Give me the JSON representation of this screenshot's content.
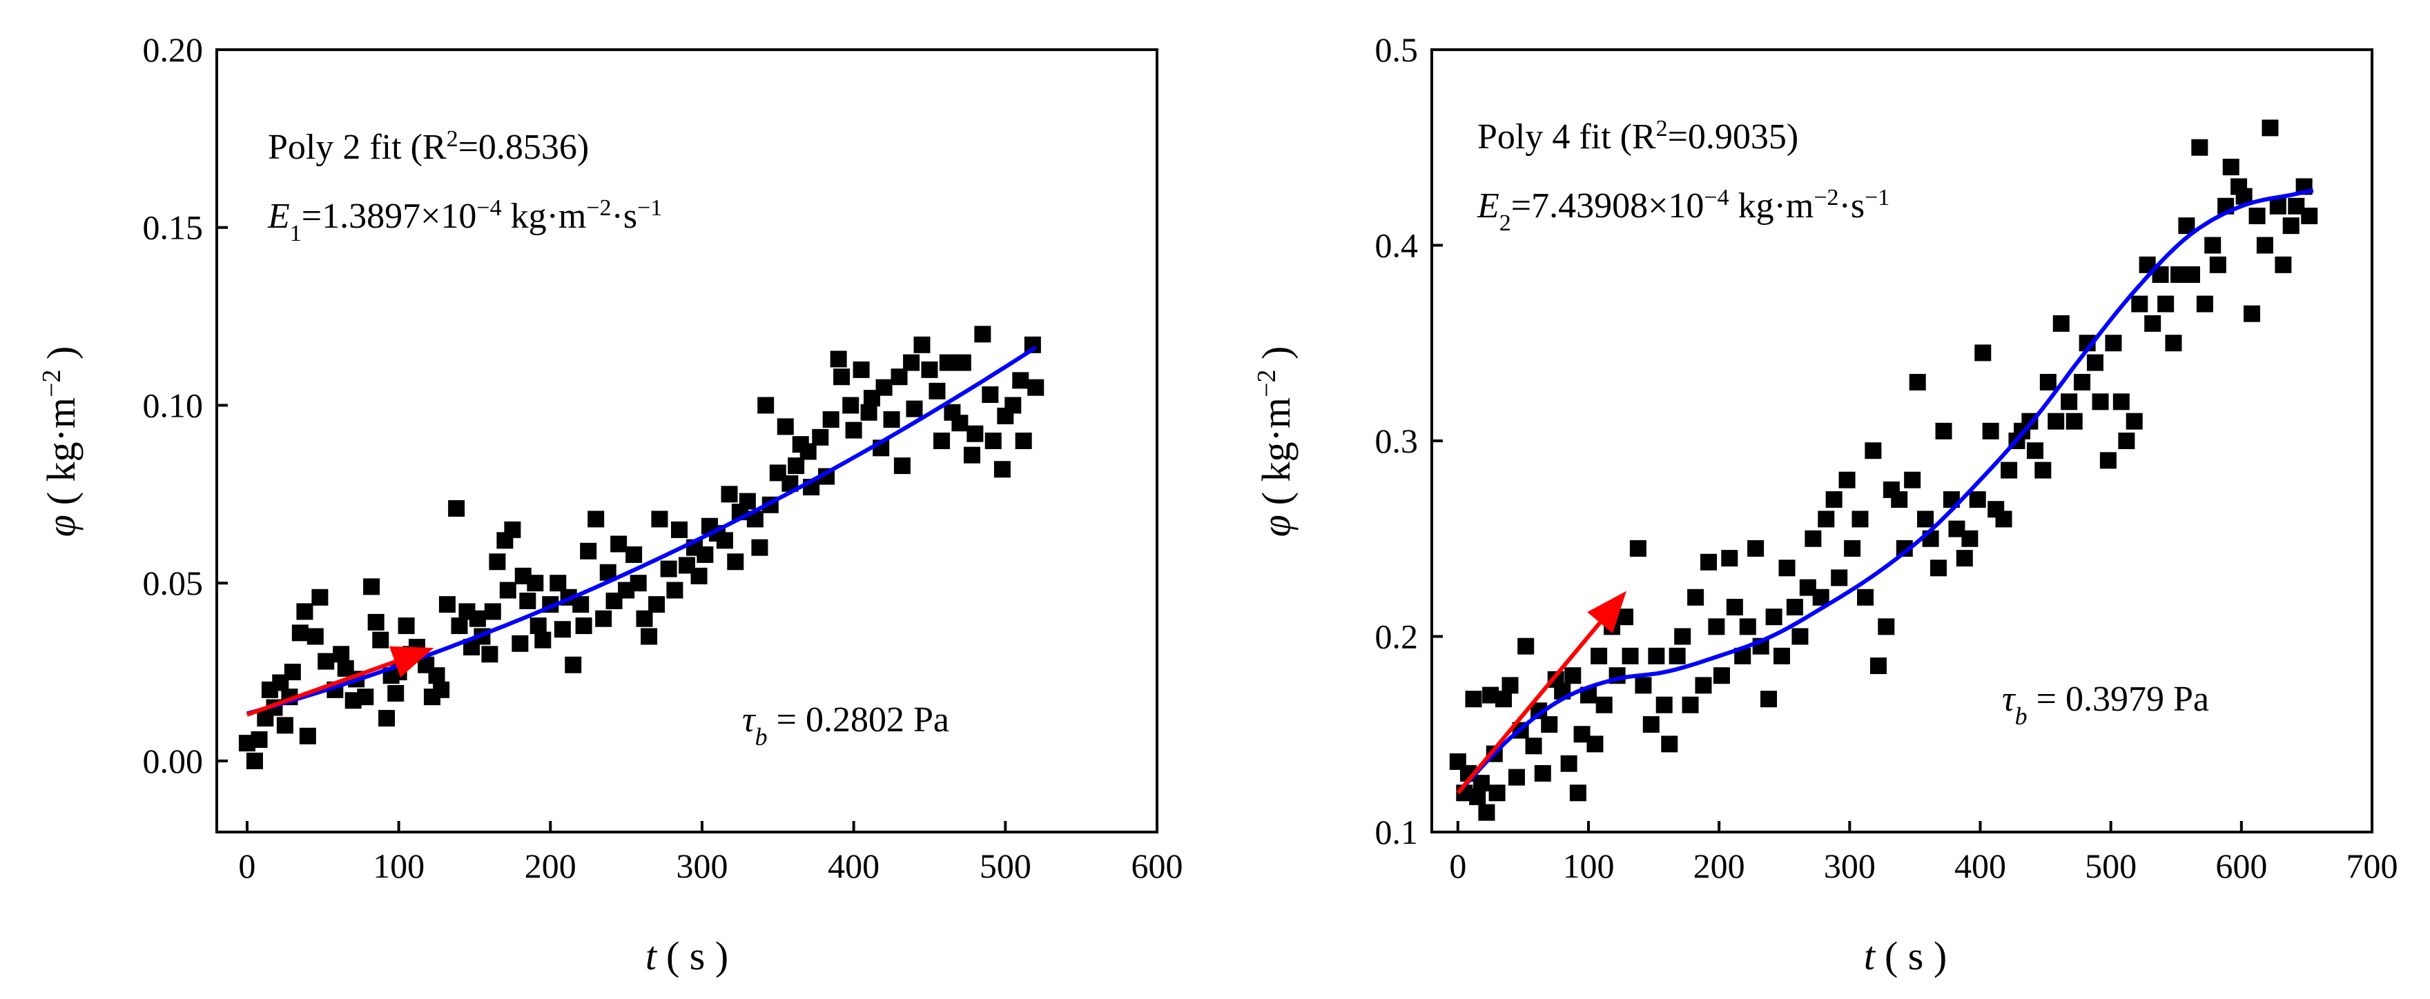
{
  "chart_data": [
    {
      "type": "scatter",
      "xlabel": {
        "symbol": "t",
        "unit": "( s )"
      },
      "ylabel": {
        "symbol": "φ",
        "open": "( kg·m",
        "sup": "−2",
        "close": " )"
      },
      "xlim": [
        -20,
        600
      ],
      "ylim": [
        -0.02,
        0.2
      ],
      "xticks": [
        0,
        100,
        200,
        300,
        400,
        500,
        600
      ],
      "yticks": [
        0.0,
        0.05,
        0.1,
        0.15,
        0.2
      ],
      "ytick_labels": [
        "0.00",
        "0.05",
        "0.10",
        "0.15",
        "0.20"
      ],
      "fit": {
        "type": "poly2",
        "coeffs": [
          0.0133,
          0.00012,
          1.5e-07
        ],
        "x_range": [
          0,
          520
        ],
        "color": "#0000ff"
      },
      "arrow": {
        "from": [
          0,
          0.013
        ],
        "to": [
          118,
          0.031
        ],
        "color": "#ff0000"
      },
      "annotations": {
        "fit_text": {
          "prefix": "Poly 2 fit (R",
          "sup": "2",
          "suffix": "=0.8536)"
        },
        "rate_text": {
          "sym": "E",
          "sub": "1",
          "mid": "=1.3897×10",
          "sup1": "−4",
          "unit": " kg·m",
          "sup2": "−2",
          "unit2": "·s",
          "sup3": "−1"
        },
        "stress_text": {
          "sym": "τ",
          "sub": "b",
          "rest": " = 0.2802 Pa"
        }
      },
      "marker_color": "#000000",
      "x": [
        0,
        5,
        8,
        12,
        15,
        18,
        22,
        25,
        28,
        30,
        35,
        38,
        40,
        45,
        48,
        52,
        58,
        62,
        65,
        70,
        72,
        78,
        82,
        85,
        88,
        92,
        95,
        98,
        100,
        105,
        108,
        112,
        118,
        122,
        125,
        128,
        132,
        138,
        140,
        145,
        148,
        152,
        155,
        160,
        162,
        165,
        170,
        172,
        175,
        180,
        182,
        185,
        190,
        192,
        195,
        200,
        205,
        208,
        212,
        215,
        220,
        222,
        225,
        230,
        235,
        238,
        242,
        245,
        250,
        255,
        258,
        262,
        265,
        270,
        272,
        278,
        282,
        285,
        290,
        295,
        298,
        302,
        305,
        310,
        315,
        318,
        322,
        325,
        330,
        335,
        338,
        342,
        345,
        350,
        355,
        358,
        362,
        365,
        370,
        372,
        378,
        382,
        385,
        390,
        392,
        398,
        400,
        405,
        410,
        412,
        418,
        420,
        425,
        430,
        432,
        438,
        440,
        445,
        450,
        455,
        458,
        462,
        465,
        470,
        472,
        478,
        480,
        485,
        490,
        492,
        498,
        500,
        505,
        510,
        512,
        518,
        520
      ],
      "y": [
        0.005,
        0.0,
        0.006,
        0.012,
        0.02,
        0.015,
        0.022,
        0.01,
        0.018,
        0.025,
        0.036,
        0.042,
        0.007,
        0.035,
        0.046,
        0.028,
        0.02,
        0.03,
        0.026,
        0.017,
        0.023,
        0.018,
        0.049,
        0.039,
        0.034,
        0.012,
        0.024,
        0.019,
        0.025,
        0.038,
        0.03,
        0.032,
        0.027,
        0.018,
        0.024,
        0.02,
        0.044,
        0.071,
        0.038,
        0.042,
        0.032,
        0.04,
        0.035,
        0.03,
        0.042,
        0.056,
        0.062,
        0.048,
        0.065,
        0.033,
        0.052,
        0.045,
        0.05,
        0.038,
        0.034,
        0.044,
        0.05,
        0.037,
        0.046,
        0.027,
        0.044,
        0.038,
        0.059,
        0.068,
        0.04,
        0.053,
        0.045,
        0.061,
        0.048,
        0.058,
        0.05,
        0.04,
        0.035,
        0.044,
        0.068,
        0.054,
        0.048,
        0.065,
        0.055,
        0.06,
        0.052,
        0.058,
        0.066,
        0.064,
        0.062,
        0.075,
        0.056,
        0.07,
        0.073,
        0.068,
        0.06,
        0.1,
        0.072,
        0.081,
        0.094,
        0.078,
        0.083,
        0.089,
        0.087,
        0.077,
        0.091,
        0.08,
        0.096,
        0.113,
        0.108,
        0.1,
        0.093,
        0.11,
        0.098,
        0.102,
        0.088,
        0.105,
        0.096,
        0.108,
        0.083,
        0.112,
        0.099,
        0.117,
        0.11,
        0.104,
        0.09,
        0.112,
        0.098,
        0.095,
        0.112,
        0.086,
        0.092,
        0.12,
        0.103,
        0.09,
        0.082,
        0.097,
        0.1,
        0.107,
        0.09,
        0.117,
        0.105
      ]
    },
    {
      "type": "scatter",
      "xlabel": {
        "symbol": "t",
        "unit": "( s )"
      },
      "ylabel": {
        "symbol": "φ",
        "open": "( kg·m",
        "sup": "−2",
        "close": " )"
      },
      "xlim": [
        -20,
        700
      ],
      "ylim": [
        0.1,
        0.5
      ],
      "xticks": [
        0,
        100,
        200,
        300,
        400,
        500,
        600,
        700
      ],
      "yticks": [
        0.1,
        0.2,
        0.3,
        0.4,
        0.5
      ],
      "ytick_labels": [
        "0.1",
        "0.2",
        "0.3",
        "0.4",
        "0.5"
      ],
      "fit": {
        "type": "curve",
        "color": "#0000ff",
        "x": [
          0,
          40,
          80,
          120,
          160,
          200,
          240,
          280,
          320,
          360,
          400,
          440,
          480,
          520,
          560,
          600,
          640,
          655
        ],
        "y": [
          0.12,
          0.148,
          0.168,
          0.178,
          0.182,
          0.19,
          0.2,
          0.215,
          0.232,
          0.253,
          0.28,
          0.31,
          0.345,
          0.378,
          0.405,
          0.42,
          0.426,
          0.428
        ]
      },
      "arrow": {
        "from": [
          0,
          0.12
        ],
        "to": [
          125,
          0.22
        ],
        "color": "#ff0000"
      },
      "annotations": {
        "fit_text": {
          "prefix": "Poly 4 fit (R",
          "sup": "2",
          "suffix": "=0.9035)"
        },
        "rate_text": {
          "sym": "E",
          "sub": "2",
          "mid": "=7.43908×10",
          "sup1": "−4",
          "unit": " kg·m",
          "sup2": "−2",
          "unit2": "·s",
          "sup3": "−1"
        },
        "stress_text": {
          "sym": "τ",
          "sub": "b",
          "rest": " = 0.3979 Pa"
        }
      },
      "marker_color": "#000000",
      "x": [
        0,
        5,
        8,
        12,
        15,
        18,
        22,
        25,
        28,
        30,
        35,
        40,
        45,
        48,
        52,
        58,
        62,
        65,
        70,
        75,
        80,
        85,
        88,
        92,
        95,
        100,
        105,
        108,
        112,
        118,
        122,
        128,
        132,
        138,
        142,
        148,
        152,
        158,
        162,
        168,
        172,
        178,
        182,
        188,
        192,
        198,
        202,
        208,
        212,
        218,
        222,
        228,
        232,
        238,
        242,
        248,
        252,
        258,
        262,
        268,
        272,
        278,
        282,
        288,
        292,
        298,
        302,
        308,
        312,
        318,
        322,
        328,
        332,
        338,
        342,
        348,
        352,
        358,
        362,
        368,
        372,
        378,
        382,
        388,
        392,
        398,
        402,
        408,
        412,
        418,
        422,
        428,
        432,
        438,
        442,
        448,
        452,
        458,
        462,
        468,
        472,
        478,
        482,
        488,
        492,
        498,
        502,
        508,
        512,
        518,
        522,
        528,
        532,
        538,
        542,
        548,
        552,
        558,
        562,
        568,
        572,
        578,
        582,
        588,
        592,
        598,
        602,
        608,
        612,
        618,
        622,
        628,
        632,
        638,
        642,
        648,
        652
      ],
      "y": [
        0.136,
        0.12,
        0.13,
        0.168,
        0.118,
        0.125,
        0.11,
        0.17,
        0.14,
        0.12,
        0.168,
        0.175,
        0.128,
        0.152,
        0.195,
        0.144,
        0.162,
        0.13,
        0.155,
        0.178,
        0.172,
        0.135,
        0.18,
        0.12,
        0.15,
        0.17,
        0.145,
        0.19,
        0.165,
        0.205,
        0.18,
        0.21,
        0.19,
        0.245,
        0.175,
        0.155,
        0.19,
        0.165,
        0.145,
        0.19,
        0.2,
        0.165,
        0.22,
        0.175,
        0.238,
        0.205,
        0.18,
        0.24,
        0.215,
        0.19,
        0.205,
        0.245,
        0.195,
        0.168,
        0.21,
        0.19,
        0.235,
        0.215,
        0.2,
        0.225,
        0.25,
        0.22,
        0.26,
        0.27,
        0.23,
        0.28,
        0.245,
        0.26,
        0.22,
        0.295,
        0.185,
        0.205,
        0.275,
        0.27,
        0.245,
        0.28,
        0.33,
        0.26,
        0.25,
        0.235,
        0.305,
        0.27,
        0.255,
        0.24,
        0.25,
        0.27,
        0.345,
        0.305,
        0.265,
        0.26,
        0.285,
        0.3,
        0.305,
        0.31,
        0.295,
        0.285,
        0.33,
        0.31,
        0.36,
        0.32,
        0.31,
        0.33,
        0.35,
        0.34,
        0.32,
        0.29,
        0.35,
        0.32,
        0.3,
        0.31,
        0.37,
        0.39,
        0.36,
        0.385,
        0.37,
        0.35,
        0.385,
        0.41,
        0.385,
        0.45,
        0.37,
        0.4,
        0.39,
        0.42,
        0.44,
        0.43,
        0.425,
        0.365,
        0.415,
        0.4,
        0.46,
        0.42,
        0.39,
        0.41,
        0.42,
        0.43,
        0.415
      ]
    }
  ]
}
